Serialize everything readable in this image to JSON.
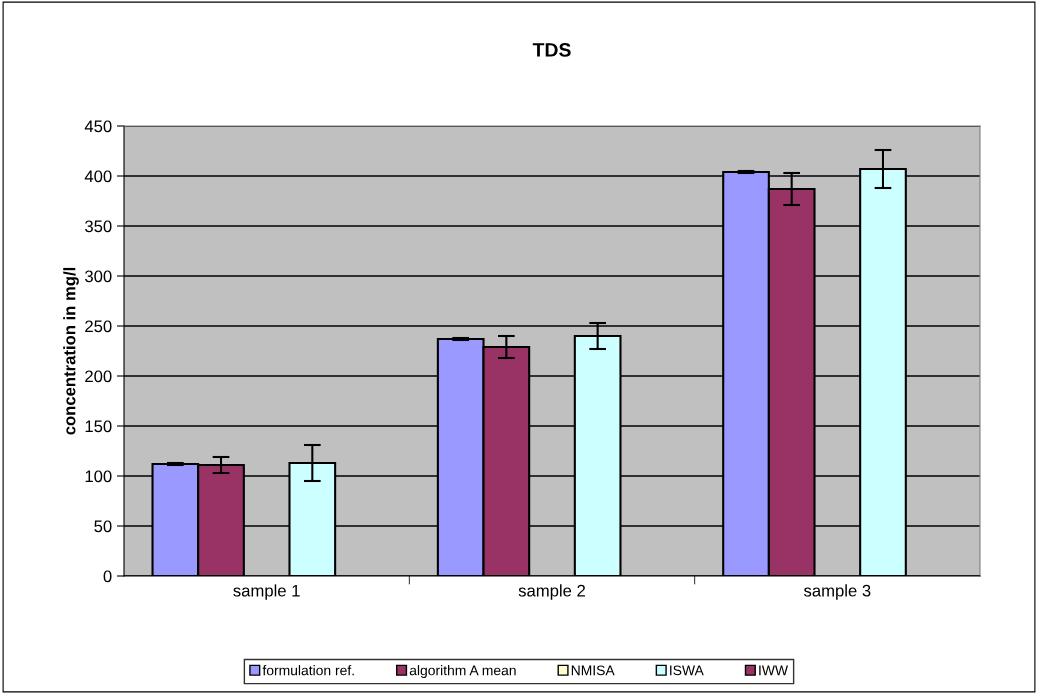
{
  "chart_data": {
    "type": "bar",
    "title": "TDS",
    "ylabel": "concentration in mg/l",
    "categories": [
      "sample 1",
      "sample 2",
      "sample 3"
    ],
    "series": [
      {
        "name": "formulation ref.",
        "color": "#9999ff",
        "values": [
          112,
          237,
          404
        ],
        "errors": [
          1,
          1,
          1
        ]
      },
      {
        "name": "algorithm A mean",
        "color": "#993366",
        "values": [
          111,
          229,
          387
        ],
        "errors": [
          8,
          11,
          16
        ]
      },
      {
        "name": "NMISA",
        "color": "#ffffcc",
        "values": [
          null,
          null,
          null
        ]
      },
      {
        "name": "ISWA",
        "color": "#ccffff",
        "values": [
          113,
          240,
          407
        ],
        "errors": [
          18,
          13,
          19
        ]
      },
      {
        "name": "IWW",
        "color": "#993366",
        "values": [
          null,
          null,
          null
        ]
      }
    ],
    "ylim": [
      0,
      450
    ],
    "yticks": [
      0,
      50,
      100,
      150,
      200,
      250,
      300,
      350,
      400,
      450
    ],
    "grid": "y",
    "legend": "bottom"
  }
}
